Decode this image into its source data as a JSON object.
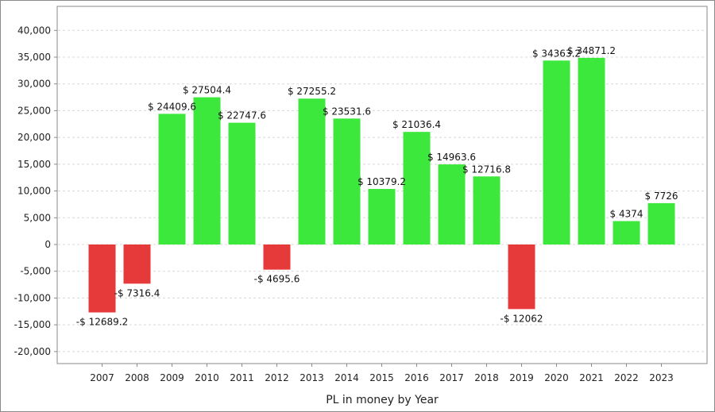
{
  "chart_data": {
    "type": "bar",
    "xlabel": "PL in money by Year",
    "ylabel": "",
    "ylim": [
      -22000,
      44000
    ],
    "yticks": [
      -20000,
      -15000,
      -10000,
      -5000,
      0,
      5000,
      10000,
      15000,
      20000,
      25000,
      30000,
      35000,
      40000
    ],
    "ytick_labels": [
      "-20,000",
      "-15,000",
      "-10,000",
      "-5,000",
      "0",
      "5,000",
      "10,000",
      "15,000",
      "20,000",
      "25,000",
      "30,000",
      "35,000",
      "40,000"
    ],
    "grid": true,
    "categories": [
      "2007",
      "2008",
      "2009",
      "2010",
      "2011",
      "2012",
      "2013",
      "2014",
      "2015",
      "2016",
      "2017",
      "2018",
      "2019",
      "2020",
      "2021",
      "2022",
      "2023"
    ],
    "values": [
      -12689.2,
      -7316.4,
      24409.6,
      27504.4,
      22747.6,
      -4695.6,
      27255.2,
      23531.6,
      10379.2,
      21036.4,
      14963.6,
      12716.8,
      -12062,
      34363.2,
      34871.2,
      4374,
      7726
    ],
    "data_labels": [
      "-$ 12689.2",
      "-$ 7316.4",
      "$ 24409.6",
      "$ 27504.4",
      "$ 22747.6",
      "-$ 4695.6",
      "$ 27255.2",
      "$ 23531.6",
      "$ 10379.2",
      "$ 21036.4",
      "$ 14963.6",
      "$ 12716.8",
      "-$ 12062",
      "$ 34363.2",
      "$ 34871.2",
      "$ 4374",
      "$ 7726"
    ],
    "colors": {
      "positive": "#3de83d",
      "negative": "#e63a3a",
      "grid": "#d8d8d8",
      "axis": "#8a8a8a"
    }
  }
}
